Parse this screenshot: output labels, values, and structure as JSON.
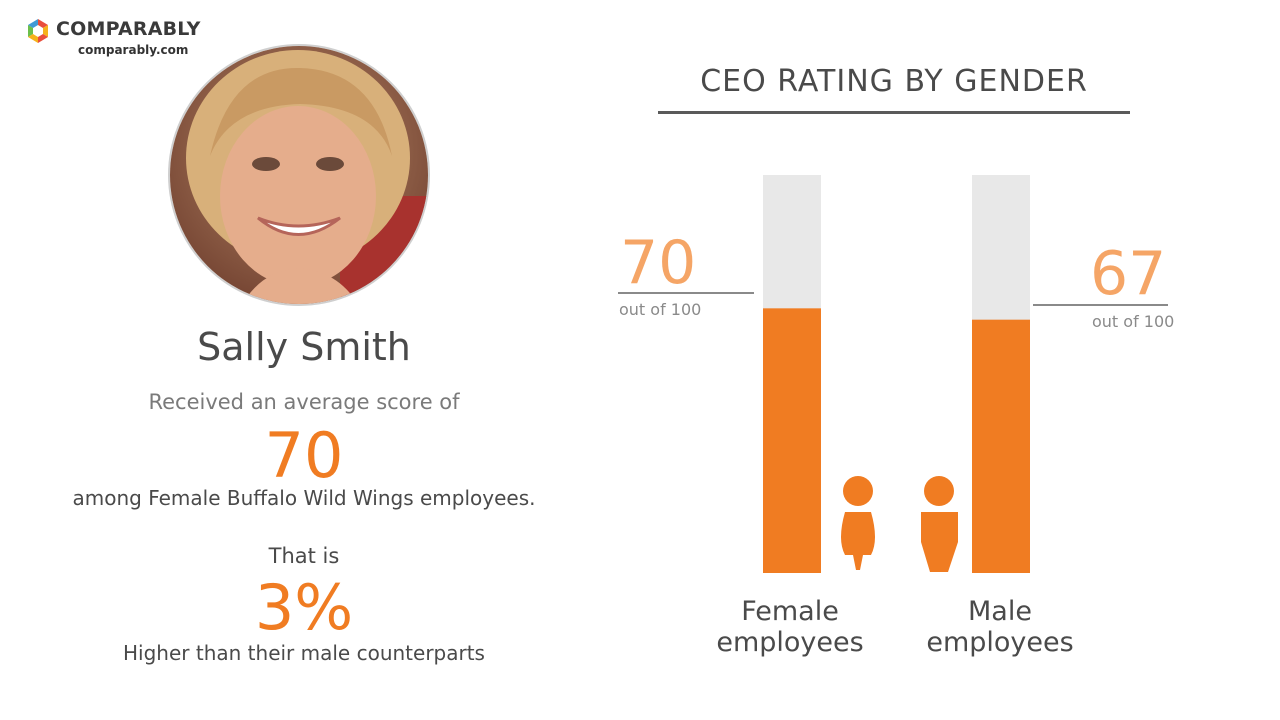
{
  "brand": {
    "name": "COMPARABLY",
    "url": "comparably.com",
    "colors": [
      "#e94e3c",
      "#f6b21b",
      "#3f9ad6",
      "#6cbf4b"
    ]
  },
  "profile": {
    "name": "Sally Smith",
    "intro": "Received an average score of",
    "score": "70",
    "context": "among Female Buffalo Wild Wings employees.",
    "that_is": "That is",
    "difference": "3%",
    "comparison": "Higher than their male counterparts"
  },
  "chart_data": {
    "type": "bar",
    "title": "CEO RATING BY GENDER",
    "categories": [
      "Female employees",
      "Male employees"
    ],
    "category_lines": [
      [
        "Female",
        "employees"
      ],
      [
        "Male",
        "employees"
      ]
    ],
    "values": [
      70,
      67
    ],
    "value_labels": [
      "70",
      "67"
    ],
    "max": 100,
    "max_label": "out of 100",
    "icons": [
      "female-person-icon",
      "male-person-icon"
    ],
    "colors": {
      "fill": "#f07c22",
      "track": "#e8e8e8",
      "label": "#f5a566"
    }
  }
}
